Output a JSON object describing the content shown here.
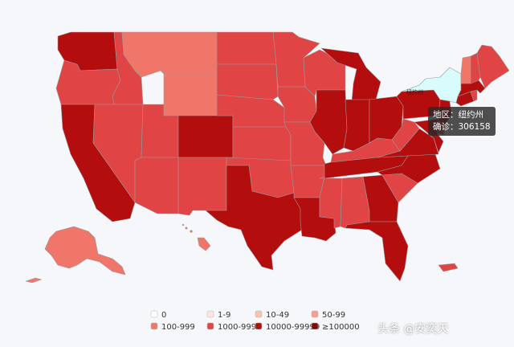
{
  "colors": {
    "0": "#ffffff",
    "1-9": "#fde7dc",
    "10-49": "#f7c2ae",
    "50-99": "#f2a08a",
    "100-999": "#f0766a",
    "1000-9999": "#e04444",
    "10000-99999": "#b40d0d",
    "gte100000": "#7a0a0a",
    "highlight": "#d8fbfb"
  },
  "legend": [
    {
      "label": "0",
      "color": "#ffffff"
    },
    {
      "label": "1-9",
      "color": "#fde7dc"
    },
    {
      "label": "10-49",
      "color": "#f7c2ae"
    },
    {
      "label": "50-99",
      "color": "#f2a08a"
    },
    {
      "label": "100-999",
      "color": "#f0766a"
    },
    {
      "label": "1000-9999",
      "color": "#e04444"
    },
    {
      "label": "10000-99999",
      "color": "#b40d0d"
    },
    {
      "label": "≥100000",
      "color": "#7a0a0a"
    }
  ],
  "map_label": "纽约州",
  "tooltip": {
    "line1": "地区：纽约州",
    "line2": "确诊：306158"
  },
  "watermark": "头条 @安奕天",
  "states": [
    {
      "id": "WA",
      "tier": "10000-99999"
    },
    {
      "id": "OR",
      "tier": "1000-9999"
    },
    {
      "id": "CA",
      "tier": "10000-99999"
    },
    {
      "id": "ID",
      "tier": "1000-9999"
    },
    {
      "id": "NV",
      "tier": "1000-9999"
    },
    {
      "id": "MT",
      "tier": "100-999"
    },
    {
      "id": "WY",
      "tier": "100-999"
    },
    {
      "id": "UT",
      "tier": "1000-9999"
    },
    {
      "id": "AZ",
      "tier": "1000-9999"
    },
    {
      "id": "CO",
      "tier": "10000-99999"
    },
    {
      "id": "NM",
      "tier": "1000-9999"
    },
    {
      "id": "ND",
      "tier": "1000-9999"
    },
    {
      "id": "SD",
      "tier": "1000-9999"
    },
    {
      "id": "NE",
      "tier": "1000-9999"
    },
    {
      "id": "KS",
      "tier": "1000-9999"
    },
    {
      "id": "OK",
      "tier": "1000-9999"
    },
    {
      "id": "TX",
      "tier": "10000-99999"
    },
    {
      "id": "MN",
      "tier": "1000-9999"
    },
    {
      "id": "IA",
      "tier": "1000-9999"
    },
    {
      "id": "MO",
      "tier": "1000-9999"
    },
    {
      "id": "AR",
      "tier": "1000-9999"
    },
    {
      "id": "LA",
      "tier": "10000-99999"
    },
    {
      "id": "WI",
      "tier": "1000-9999"
    },
    {
      "id": "IL",
      "tier": "10000-99999"
    },
    {
      "id": "MI",
      "tier": "10000-99999"
    },
    {
      "id": "IN",
      "tier": "10000-99999"
    },
    {
      "id": "OH",
      "tier": "10000-99999"
    },
    {
      "id": "KY",
      "tier": "1000-9999"
    },
    {
      "id": "TN",
      "tier": "10000-99999"
    },
    {
      "id": "MS",
      "tier": "1000-9999"
    },
    {
      "id": "AL",
      "tier": "1000-9999"
    },
    {
      "id": "GA",
      "tier": "10000-99999"
    },
    {
      "id": "FL",
      "tier": "10000-99999"
    },
    {
      "id": "SC",
      "tier": "1000-9999"
    },
    {
      "id": "NC",
      "tier": "10000-99999"
    },
    {
      "id": "VA",
      "tier": "10000-99999"
    },
    {
      "id": "WV",
      "tier": "1000-9999"
    },
    {
      "id": "PA",
      "tier": "10000-99999"
    },
    {
      "id": "NY",
      "tier": "highlight"
    },
    {
      "id": "NJ",
      "tier": "10000-99999"
    },
    {
      "id": "DE",
      "tier": "1000-9999"
    },
    {
      "id": "MD",
      "tier": "10000-99999"
    },
    {
      "id": "CT",
      "tier": "10000-99999"
    },
    {
      "id": "RI",
      "tier": "1000-9999"
    },
    {
      "id": "MA",
      "tier": "10000-99999"
    },
    {
      "id": "VT",
      "tier": "100-999"
    },
    {
      "id": "NH",
      "tier": "1000-9999"
    },
    {
      "id": "ME",
      "tier": "1000-9999"
    },
    {
      "id": "AK",
      "tier": "100-999"
    },
    {
      "id": "HI",
      "tier": "100-999"
    },
    {
      "id": "PR",
      "tier": "1000-9999"
    }
  ]
}
